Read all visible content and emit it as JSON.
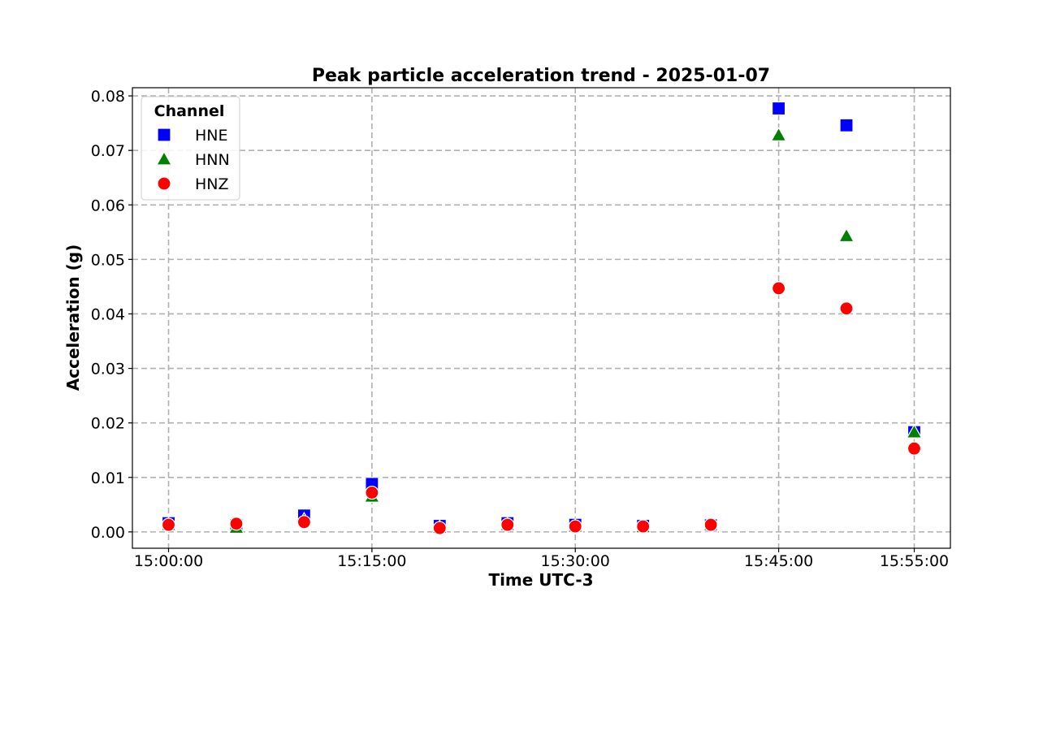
{
  "chart_data": {
    "type": "scatter",
    "title": "Peak particle acceleration trend - 2025-01-07",
    "xlabel": "Time UTC-3",
    "ylabel": "Acceleration (g)",
    "x": [
      "15:00:00",
      "15:05:00",
      "15:10:00",
      "15:15:00",
      "15:20:00",
      "15:25:00",
      "15:30:00",
      "15:35:00",
      "15:40:00",
      "15:45:00",
      "15:50:00",
      "15:55:00"
    ],
    "x_ticks": [
      "15:00:00",
      "15:15:00",
      "15:30:00",
      "15:45:00",
      "15:55:00"
    ],
    "xlim": [
      "14:57:20",
      "15:57:40"
    ],
    "ylim": [
      -0.003,
      0.0815
    ],
    "y_ticks": [
      0.0,
      0.01,
      0.02,
      0.03,
      0.04,
      0.05,
      0.06,
      0.07,
      0.08
    ],
    "y_tick_labels": [
      "0.00",
      "0.01",
      "0.02",
      "0.03",
      "0.04",
      "0.05",
      "0.06",
      "0.07",
      "0.08"
    ],
    "grid": true,
    "legend": {
      "title": "Channel",
      "placement": "top-left"
    },
    "series": [
      {
        "name": "HNE",
        "marker": "square",
        "color": "#0000ff",
        "values": [
          0.0016,
          0.0012,
          0.003,
          0.0088,
          0.0011,
          0.0016,
          0.0013,
          0.0011,
          0.0012,
          0.0777,
          0.0746,
          0.0183
        ]
      },
      {
        "name": "HNN",
        "marker": "triangle",
        "color": "#008000",
        "values": [
          0.0013,
          0.0008,
          0.0022,
          0.0065,
          0.0008,
          0.0013,
          0.001,
          0.0009,
          0.0013,
          0.0728,
          0.0543,
          0.0183
        ]
      },
      {
        "name": "HNZ",
        "marker": "circle",
        "color": "#ff0000",
        "values": [
          0.0013,
          0.0015,
          0.0018,
          0.0072,
          0.0007,
          0.0013,
          0.001,
          0.001,
          0.0013,
          0.0447,
          0.041,
          0.0153
        ]
      }
    ]
  }
}
